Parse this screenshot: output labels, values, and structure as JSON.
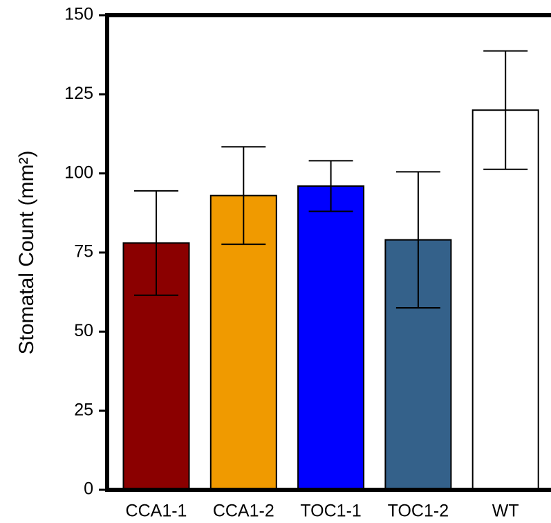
{
  "chart_data": {
    "type": "bar",
    "y_label": "Stomatal Count (mm²)",
    "categories": [
      "CCA1-1",
      "CCA1-2",
      "TOC1-1",
      "TOC1-2",
      "WT"
    ],
    "values": [
      78,
      93,
      96,
      79,
      120
    ],
    "errors": [
      16.5,
      15.4,
      8,
      21.5,
      18.7
    ],
    "colors": [
      "#8b0000",
      "#f09a00",
      "#0000ff",
      "#34618a",
      "#ffffff"
    ],
    "ylim": [
      0,
      150
    ],
    "yticks": [
      0,
      25,
      50,
      75,
      100,
      125,
      150
    ]
  }
}
